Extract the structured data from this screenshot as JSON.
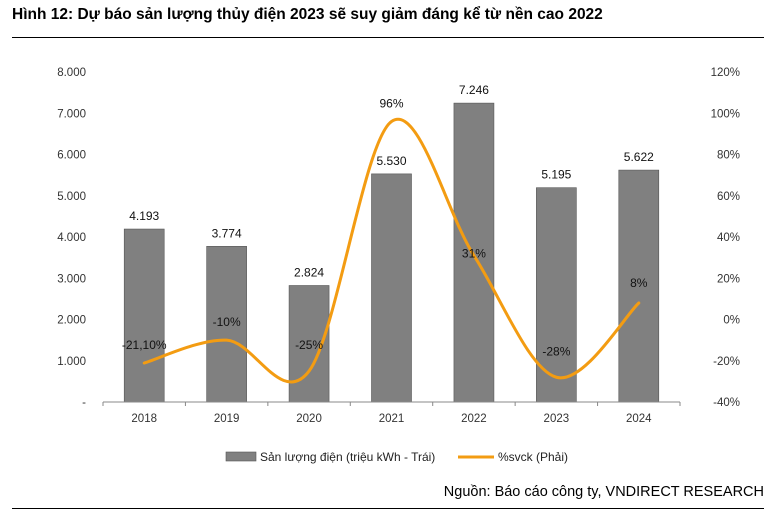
{
  "title": "Hình 12: Dự báo sản lượng thủy điện 2023 sẽ suy giảm đáng kể từ nền cao 2022",
  "source": "Nguồn: Báo cáo công ty, VNDIRECT RESEARCH",
  "chart_data": {
    "type": "bar+line",
    "categories": [
      "2018",
      "2019",
      "2020",
      "2021",
      "2022",
      "2023",
      "2024"
    ],
    "series": [
      {
        "name": "Sản lượng điện (triệu kWh - Trái)",
        "type": "bar",
        "axis": "left",
        "color": "#808080",
        "values": [
          4193,
          3774,
          2824,
          5530,
          7246,
          5195,
          5622
        ],
        "labels": [
          "4.193",
          "3.774",
          "2.824",
          "5.530",
          "7.246",
          "5.195",
          "5.622"
        ]
      },
      {
        "name": "%svck (Phải)",
        "type": "line",
        "axis": "right",
        "color": "#F39C12",
        "values": [
          -21.1,
          -10,
          -25,
          96,
          31,
          -28,
          8
        ],
        "labels": [
          "-21,10%",
          "-10%",
          "-25%",
          "96%",
          "31%",
          "-28%",
          "8%"
        ]
      }
    ],
    "y_left": {
      "ylim": [
        0,
        8000
      ],
      "ticks": [
        {
          "value": 0,
          "label": "-"
        },
        {
          "value": 1000,
          "label": "1.000"
        },
        {
          "value": 2000,
          "label": "2.000"
        },
        {
          "value": 3000,
          "label": "3.000"
        },
        {
          "value": 4000,
          "label": "4.000"
        },
        {
          "value": 5000,
          "label": "5.000"
        },
        {
          "value": 6000,
          "label": "6.000"
        },
        {
          "value": 7000,
          "label": "7.000"
        },
        {
          "value": 8000,
          "label": "8.000"
        }
      ]
    },
    "y_right": {
      "ylim": [
        -40,
        120
      ],
      "ticks": [
        {
          "value": -40,
          "label": "-40%"
        },
        {
          "value": -20,
          "label": "-20%"
        },
        {
          "value": 0,
          "label": "0%"
        },
        {
          "value": 20,
          "label": "20%"
        },
        {
          "value": 40,
          "label": "40%"
        },
        {
          "value": 60,
          "label": "60%"
        },
        {
          "value": 80,
          "label": "80%"
        },
        {
          "value": 100,
          "label": "100%"
        },
        {
          "value": 120,
          "label": "120%"
        }
      ]
    },
    "grid": false,
    "legend": "bottom-center"
  }
}
